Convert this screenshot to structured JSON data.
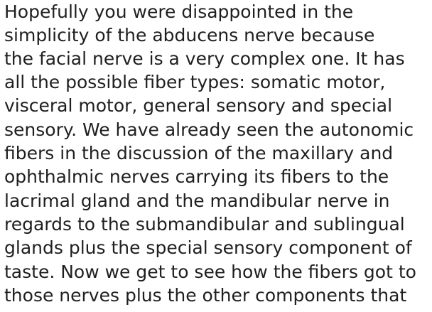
{
  "document": {
    "paragraph_lines": [
      "Hopefully you were disappointed in the",
      "simplicity of the abducens nerve because",
      "the facial nerve is a very complex one. It has",
      "all the possible fiber types: somatic motor,",
      "visceral motor, general sensory and special",
      "sensory. We have already seen the autonomic",
      "fibers in the discussion of the maxillary and",
      "ophthalmic nerves carrying its fibers to the",
      "lacrimal gland and the mandibular nerve in",
      "regards to the submandibular and sublingual",
      "glands plus the special sensory component of",
      "taste. Now we get to see how the fibers got to",
      "those nerves plus the other components that"
    ]
  }
}
